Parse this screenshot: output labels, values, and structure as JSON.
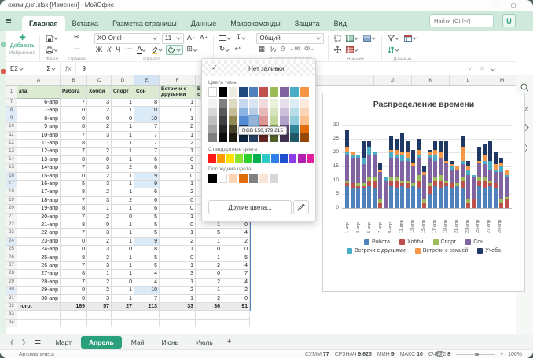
{
  "window": {
    "title": "ежим дня.xlsx [Изменен] - МойОфис"
  },
  "menu": {
    "tabs": [
      "Главная",
      "Вставка",
      "Разметка страницы",
      "Данные",
      "Макрокоманды",
      "Защита",
      "Вид"
    ],
    "active_tab": "Главная",
    "search_placeholder": "Найти (Ctrl+/)",
    "user_initial": "U"
  },
  "toolbar": {
    "add_label": "Добавить",
    "group_labels": {
      "favorites": "Избранное",
      "file": "Файл",
      "edit": "Правка",
      "font": "Шрифт",
      "number": "Числовой формат",
      "cells": "Ячейки",
      "data": "Данные"
    },
    "font_name": "XO Oriel",
    "font_size": "11",
    "bold": "Ж",
    "italic": "К",
    "underline": "Ч",
    "number_format": "Общий"
  },
  "formula_bar": {
    "cell_ref": "E2",
    "value": "9"
  },
  "fill_menu": {
    "no_fill": "Нет заливки",
    "theme_label": "Цвета темы",
    "standard_label": "Стандартные цвета",
    "recent_label": "Последние цвета",
    "more_label": "Другие цвета...",
    "tooltip": "RGB 150,179,215",
    "theme_colors": [
      "#ffffff",
      "#000000",
      "#eeece1",
      "#1f497d",
      "#4f81bd",
      "#c0504d",
      "#9bbb59",
      "#8064a2",
      "#4bacc6",
      "#f79646"
    ],
    "theme_tints": [
      [
        "#f2f2f2",
        "#7f7f7f",
        "#ddd9c3",
        "#c6d9f0",
        "#dbe5f1",
        "#f2dcdb",
        "#ebf1dd",
        "#e5e0ec",
        "#dbeef3",
        "#fdeada"
      ],
      [
        "#d8d8d8",
        "#595959",
        "#c4bd97",
        "#8db3e2",
        "#b8cce4",
        "#e5b9b7",
        "#d7e3bc",
        "#ccc1d9",
        "#b7dde8",
        "#fbd5b5"
      ],
      [
        "#bfbfbf",
        "#3f3f3f",
        "#938953",
        "#548dd4",
        "#95b3d7",
        "#d99694",
        "#c3d69b",
        "#b2a2c7",
        "#92cddc",
        "#fac08f"
      ],
      [
        "#a5a5a5",
        "#262626",
        "#494429",
        "#17365d",
        "#366092",
        "#953734",
        "#76923c",
        "#5f497a",
        "#31859b",
        "#e36c0a"
      ],
      [
        "#7f7f7f",
        "#0c0c0c",
        "#1d1b10",
        "#0f243e",
        "#244061",
        "#632423",
        "#4f6128",
        "#3f3151",
        "#205867",
        "#974806"
      ]
    ],
    "selected_tint": {
      "row": 2,
      "col": 4
    },
    "standard_colors": [
      "#ff1a1a",
      "#ff9c00",
      "#ffe100",
      "#8ce32f",
      "#2fd12f",
      "#00b050",
      "#2fc9c9",
      "#2f7fe8",
      "#1f4fd1",
      "#8c3fe8",
      "#b01fb0",
      "#e01f9c"
    ],
    "recent_colors": [
      "#000000",
      "#ffffff",
      "#fcd5b4",
      "#e36c0a",
      "#808080",
      "#fbe5d6",
      "#d9d9d9"
    ]
  },
  "grid": {
    "col_letters": [
      "A",
      "B",
      "C",
      "D",
      "E",
      "F",
      "G",
      "H",
      "I",
      "J",
      "K",
      "L",
      "M"
    ],
    "header_row": {
      "n": "1",
      "cells": [
        "ата",
        "Работа",
        "Хобби",
        "Спорт",
        "Сон",
        "Встречи с друзьями",
        "Встречи с семьей",
        ""
      ]
    },
    "rows": [
      {
        "n": "7",
        "a": "6-апр",
        "v": [
          "7",
          "3",
          "1",
          "8",
          "1",
          "",
          ""
        ],
        "hl": false
      },
      {
        "n": "8",
        "a": "7-апр",
        "v": [
          "0",
          "2",
          "1",
          "10",
          "0",
          "",
          ""
        ],
        "hl": true
      },
      {
        "n": "9",
        "a": "8-апр",
        "v": [
          "0",
          "0",
          "0",
          "10",
          "1",
          "",
          ""
        ],
        "hl": true
      },
      {
        "n": "10",
        "a": "9-апр",
        "v": [
          "8",
          "2",
          "1",
          "7",
          "2",
          "",
          ""
        ],
        "hl": false
      },
      {
        "n": "11",
        "a": "10-апр",
        "v": [
          "7",
          "3",
          "1",
          "7",
          "1",
          "",
          ""
        ],
        "hl": false
      },
      {
        "n": "12",
        "a": "11-апр",
        "v": [
          "8",
          "1",
          "1",
          "7",
          "2",
          "",
          ""
        ],
        "hl": false
      },
      {
        "n": "13",
        "a": "12-апр",
        "v": [
          "7",
          "2",
          "1",
          "7",
          "1",
          "",
          ""
        ],
        "hl": false
      },
      {
        "n": "14",
        "a": "13-апр",
        "v": [
          "8",
          "0",
          "1",
          "6",
          "0",
          "",
          ""
        ],
        "hl": false
      },
      {
        "n": "15",
        "a": "14-апр",
        "v": [
          "7",
          "3",
          "2",
          "6",
          "1",
          "",
          ""
        ],
        "hl": false
      },
      {
        "n": "16",
        "a": "15-апр",
        "v": [
          "0",
          "2",
          "1",
          "9",
          "0",
          "",
          ""
        ],
        "hl": true
      },
      {
        "n": "17",
        "a": "16-апр",
        "v": [
          "5",
          "3",
          "1",
          "9",
          "1",
          "",
          ""
        ],
        "hl": true
      },
      {
        "n": "18",
        "a": "17-апр",
        "v": [
          "8",
          "2",
          "1",
          "6",
          "2",
          "",
          ""
        ],
        "hl": false
      },
      {
        "n": "19",
        "a": "18-апр",
        "v": [
          "7",
          "3",
          "2",
          "6",
          "0",
          "",
          ""
        ],
        "hl": false
      },
      {
        "n": "20",
        "a": "19-апр",
        "v": [
          "8",
          "1",
          "1",
          "6",
          "0",
          "",
          ""
        ],
        "hl": false
      },
      {
        "n": "21",
        "a": "20-апр",
        "v": [
          "7",
          "2",
          "0",
          "5",
          "1",
          "",
          ""
        ],
        "hl": false
      },
      {
        "n": "22",
        "a": "21-апр",
        "v": [
          "8",
          "0",
          "1",
          "5",
          "0",
          "1",
          "0"
        ],
        "hl": false
      },
      {
        "n": "23",
        "a": "22-апр",
        "v": [
          "7",
          "3",
          "1",
          "5",
          "1",
          "5",
          "4"
        ],
        "hl": false
      },
      {
        "n": "24",
        "a": "23-апр",
        "v": [
          "0",
          "2",
          "1",
          "9",
          "2",
          "1",
          "2"
        ],
        "hl": true
      },
      {
        "n": "25",
        "a": "24-апр",
        "v": [
          "0",
          "3",
          "0",
          "8",
          "1",
          "0",
          "0"
        ],
        "hl": false
      },
      {
        "n": "26",
        "a": "25-апр",
        "v": [
          "8",
          "2",
          "1",
          "5",
          "0",
          "1",
          "5"
        ],
        "hl": false
      },
      {
        "n": "27",
        "a": "26-апр",
        "v": [
          "7",
          "3",
          "1",
          "5",
          "1",
          "2",
          "4"
        ],
        "hl": false
      },
      {
        "n": "28",
        "a": "27-апр",
        "v": [
          "8",
          "1",
          "1",
          "4",
          "3",
          "0",
          "7"
        ],
        "hl": false
      },
      {
        "n": "29",
        "a": "28-апр",
        "v": [
          "7",
          "2",
          "0",
          "4",
          "1",
          "2",
          "4"
        ],
        "hl": false
      },
      {
        "n": "30",
        "a": "29-апр",
        "v": [
          "0",
          "2",
          "1",
          "10",
          "2",
          "1",
          "2"
        ],
        "hl": true
      },
      {
        "n": "31",
        "a": "30-апр",
        "v": [
          "0",
          "3",
          "1",
          "7",
          "1",
          "2",
          "0"
        ],
        "hl": false
      }
    ],
    "totals": {
      "n": "32",
      "a": "того:",
      "v": [
        "169",
        "57",
        "27",
        "213",
        "33",
        "36",
        "91"
      ]
    },
    "trailing_rows": [
      "33",
      "34"
    ]
  },
  "chart_data": {
    "type": "bar",
    "stacked": true,
    "title": "Распределение времени",
    "categories": [
      "1-апр",
      "2-апр",
      "3-апр",
      "4-апр",
      "5-апр",
      "6-апр",
      "7-апр",
      "8-апр",
      "9-апр",
      "10-апр",
      "11-апр",
      "12-апр",
      "13-апр",
      "14-апр",
      "15-апр",
      "16-апр",
      "17-апр",
      "18-апр",
      "19-апр",
      "20-апр",
      "21-апр",
      "22-апр",
      "23-апр",
      "24-апр",
      "25-апр",
      "26-апр",
      "27-апр",
      "28-апр",
      "29-апр",
      "30-апр"
    ],
    "series": [
      {
        "name": "Работа",
        "color": "#4f81bd",
        "values": [
          8,
          7,
          7,
          7,
          8,
          7,
          0,
          0,
          8,
          7,
          8,
          7,
          8,
          7,
          0,
          5,
          8,
          7,
          8,
          7,
          8,
          7,
          0,
          0,
          8,
          7,
          8,
          7,
          0,
          0
        ]
      },
      {
        "name": "Хобби",
        "color": "#c0504d",
        "values": [
          1,
          2,
          1,
          1,
          2,
          3,
          2,
          0,
          2,
          3,
          1,
          2,
          0,
          3,
          2,
          3,
          2,
          3,
          1,
          2,
          0,
          3,
          2,
          3,
          2,
          3,
          1,
          2,
          2,
          3
        ]
      },
      {
        "name": "Спорт",
        "color": "#9bbb59",
        "values": [
          1,
          0,
          1,
          1,
          1,
          1,
          1,
          0,
          1,
          1,
          1,
          1,
          1,
          2,
          1,
          1,
          1,
          2,
          1,
          0,
          1,
          1,
          1,
          0,
          1,
          1,
          1,
          0,
          1,
          1
        ]
      },
      {
        "name": "Сон",
        "color": "#8064a2",
        "values": [
          9,
          9,
          9,
          7,
          8,
          8,
          10,
          10,
          7,
          7,
          7,
          7,
          6,
          6,
          9,
          9,
          6,
          6,
          6,
          5,
          5,
          5,
          9,
          8,
          5,
          5,
          4,
          4,
          10,
          7
        ]
      },
      {
        "name": "Встречи с друзьями",
        "color": "#4bacc6",
        "values": [
          1,
          1,
          1,
          2,
          3,
          1,
          0,
          1,
          2,
          1,
          2,
          1,
          0,
          1,
          0,
          1,
          2,
          0,
          0,
          1,
          0,
          1,
          2,
          1,
          0,
          1,
          3,
          1,
          2,
          1
        ]
      },
      {
        "name": "Встречи с семьей",
        "color": "#f79646",
        "values": [
          2,
          1,
          0,
          0,
          0,
          0,
          1,
          0,
          1,
          2,
          1,
          2,
          1,
          2,
          1,
          1,
          2,
          2,
          1,
          1,
          1,
          5,
          1,
          0,
          1,
          2,
          0,
          2,
          1,
          2
        ]
      },
      {
        "name": "Учеба",
        "color": "#1f3864",
        "values": [
          6,
          0,
          0,
          6,
          2,
          0,
          2,
          0,
          5,
          4,
          7,
          4,
          5,
          4,
          2,
          1,
          3,
          4,
          7,
          1,
          0,
          4,
          2,
          0,
          5,
          4,
          7,
          4,
          2,
          0
        ]
      }
    ],
    "ylim": [
      0,
      30
    ],
    "yticks": [
      0,
      5,
      10,
      15,
      20,
      25,
      30
    ],
    "grid": true,
    "legend_position": "bottom",
    "x_labels_every": 2
  },
  "sheet_tabs": {
    "tabs": [
      "Март",
      "Апрель",
      "Май",
      "Июнь",
      "Июль"
    ],
    "active": "Апрель"
  },
  "status_bar": {
    "left": "Автоматическ",
    "stats": [
      [
        "СУММ",
        "77"
      ],
      [
        "СРЗНАЧ",
        "9,625"
      ],
      [
        "МИН",
        "9"
      ],
      [
        "МАКС",
        "10"
      ],
      [
        "СЧЁТ2",
        "8"
      ]
    ],
    "zoom": "100%"
  }
}
